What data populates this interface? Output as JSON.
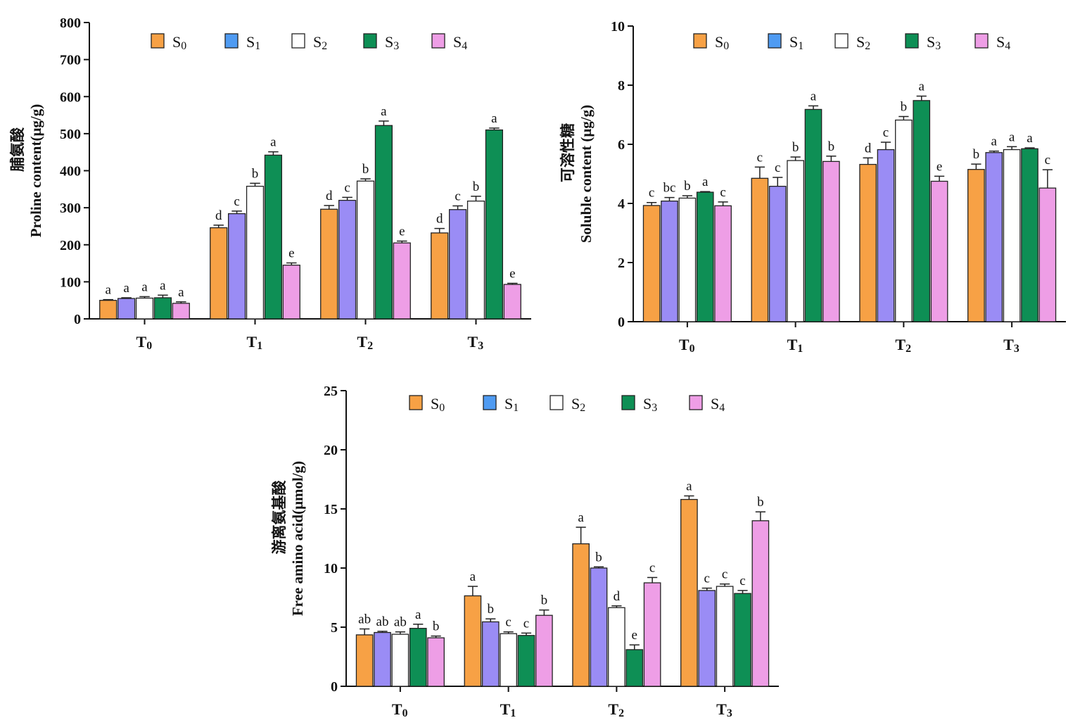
{
  "chart_data": [
    {
      "type": "bar",
      "ylabel_cn": "脯氨酸",
      "ylabel": "Proline content(μg/g)",
      "ylim": [
        0,
        800
      ],
      "yticks": [
        0,
        100,
        200,
        300,
        400,
        500,
        600,
        700,
        800
      ],
      "categories": [
        "T0",
        "T1",
        "T2",
        "T3"
      ],
      "legend": "top",
      "series": [
        {
          "name": "S0",
          "values": [
            50,
            246,
            296,
            232
          ],
          "errors": [
            2,
            7,
            10,
            12
          ],
          "letters": [
            "a",
            "d",
            "d",
            "d"
          ]
        },
        {
          "name": "S1",
          "values": [
            55,
            284,
            320,
            295
          ],
          "errors": [
            2,
            7,
            8,
            10
          ],
          "letters": [
            "a",
            "c",
            "c",
            "c"
          ]
        },
        {
          "name": "S2",
          "values": [
            56,
            358,
            372,
            318
          ],
          "errors": [
            4,
            8,
            6,
            13
          ],
          "letters": [
            "a",
            "b",
            "b",
            "b"
          ]
        },
        {
          "name": "S3",
          "values": [
            57,
            442,
            522,
            510
          ],
          "errors": [
            7,
            9,
            12,
            5
          ],
          "letters": [
            "a",
            "a",
            "a",
            "a"
          ]
        },
        {
          "name": "S4",
          "values": [
            42,
            145,
            205,
            93
          ],
          "errors": [
            4,
            6,
            5,
            3
          ],
          "letters": [
            "a",
            "e",
            "e",
            "e"
          ]
        }
      ]
    },
    {
      "type": "bar",
      "ylabel_cn": "可溶性糖",
      "ylabel": "Soluble content  (μg/g)",
      "ylim": [
        0,
        10
      ],
      "yticks": [
        0,
        2,
        4,
        6,
        8,
        10
      ],
      "categories": [
        "T0",
        "T1",
        "T2",
        "T3"
      ],
      "legend": "top",
      "series": [
        {
          "name": "S0",
          "values": [
            3.93,
            4.85,
            5.32,
            5.15
          ],
          "errors": [
            0.1,
            0.38,
            0.22,
            0.18
          ],
          "letters": [
            "c",
            "c",
            "d",
            "b"
          ]
        },
        {
          "name": "S1",
          "values": [
            4.08,
            4.58,
            5.82,
            5.72
          ],
          "errors": [
            0.12,
            0.3,
            0.25,
            0.05
          ],
          "letters": [
            "bc",
            "c",
            "c",
            "a"
          ]
        },
        {
          "name": "S2",
          "values": [
            4.18,
            5.45,
            6.82,
            5.82
          ],
          "errors": [
            0.08,
            0.12,
            0.12,
            0.1
          ],
          "letters": [
            "b",
            "b",
            "b",
            "a"
          ]
        },
        {
          "name": "S3",
          "values": [
            4.38,
            7.18,
            7.48,
            5.85
          ],
          "errors": [
            0.02,
            0.12,
            0.15,
            0.03
          ],
          "letters": [
            "a",
            "a",
            "a",
            "a"
          ]
        },
        {
          "name": "S4",
          "values": [
            3.92,
            5.42,
            4.75,
            4.52
          ],
          "errors": [
            0.13,
            0.18,
            0.17,
            0.62
          ],
          "letters": [
            "c",
            "b",
            "e",
            "c"
          ]
        }
      ]
    },
    {
      "type": "bar",
      "ylabel_cn": "游离氨基酸",
      "ylabel": "Free amino acid(μmol/g)",
      "ylim": [
        0,
        25
      ],
      "yticks": [
        0,
        5,
        10,
        15,
        20,
        25
      ],
      "categories": [
        "T0",
        "T1",
        "T2",
        "T3"
      ],
      "legend": "top",
      "series": [
        {
          "name": "S0",
          "values": [
            4.35,
            7.65,
            12.05,
            15.8
          ],
          "errors": [
            0.5,
            0.8,
            1.4,
            0.3
          ],
          "letters": [
            "ab",
            "a",
            "a",
            "a"
          ]
        },
        {
          "name": "S1",
          "values": [
            4.55,
            5.45,
            10.0,
            8.1
          ],
          "errors": [
            0.1,
            0.25,
            0.1,
            0.2
          ],
          "letters": [
            "ab",
            "b",
            "b",
            "c"
          ]
        },
        {
          "name": "S2",
          "values": [
            4.4,
            4.45,
            6.65,
            8.45
          ],
          "errors": [
            0.2,
            0.15,
            0.15,
            0.2
          ],
          "letters": [
            "ab",
            "c",
            "d",
            "c"
          ]
        },
        {
          "name": "S3",
          "values": [
            4.9,
            4.3,
            3.1,
            7.85
          ],
          "errors": [
            0.35,
            0.2,
            0.4,
            0.25
          ],
          "letters": [
            "a",
            "c",
            "e",
            "c"
          ]
        },
        {
          "name": "S4",
          "values": [
            4.1,
            6.0,
            8.75,
            14.0
          ],
          "errors": [
            0.15,
            0.45,
            0.45,
            0.75
          ],
          "letters": [
            "b",
            "b",
            "c",
            "b"
          ]
        }
      ]
    }
  ],
  "colors": {
    "S0": "#f7a145",
    "S1": "#9a8cf5",
    "S2": "#ffffff",
    "S3": "#0e8f55",
    "S4": "#ee9ee6",
    "legend_S1": "#4f9bf2"
  }
}
